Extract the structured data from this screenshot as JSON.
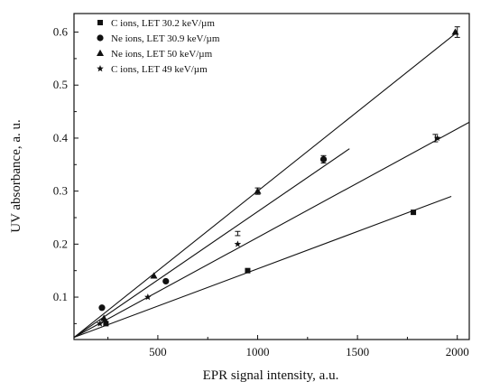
{
  "chart_data": {
    "type": "scatter",
    "xlabel": "EPR signal intensity, a.u.",
    "ylabel": "UV absorbance, a. u.",
    "xlim": [
      80,
      2060
    ],
    "ylim": [
      0.02,
      0.635
    ],
    "x_ticks": [
      500,
      1000,
      1500,
      2000
    ],
    "x_tick_labels": [
      "500",
      "1000",
      "1500",
      "2000"
    ],
    "y_ticks": [
      0.1,
      0.2,
      0.3,
      0.4,
      0.5,
      0.6
    ],
    "y_tick_labels": [
      "0.1",
      "0.2",
      "0.3",
      "0.4",
      "0.5",
      "0.6"
    ],
    "grid": false,
    "legend_position": "top-left",
    "series": [
      {
        "name": "C ions, LET 30.2 keV/µm",
        "marker": "square",
        "x": [
          240,
          950,
          1780
        ],
        "y": [
          0.05,
          0.15,
          0.26
        ],
        "fit": {
          "x": [
            80,
            1970
          ],
          "y": [
            0.024,
            0.29
          ]
        }
      },
      {
        "name": "Ne ions, LET 30.9 keV/µm",
        "marker": "circle",
        "x": [
          220,
          540,
          1330
        ],
        "y": [
          0.08,
          0.13,
          0.36
        ],
        "fit": {
          "x": [
            80,
            1460
          ],
          "y": [
            0.024,
            0.38
          ]
        }
      },
      {
        "name": "Ne ions, LET 50 keV/µm",
        "marker": "triangle",
        "x": [
          230,
          480,
          1000,
          1990
        ],
        "y": [
          0.06,
          0.14,
          0.3,
          0.6
        ],
        "fit": {
          "x": [
            80,
            2000
          ],
          "y": [
            0.024,
            0.6
          ]
        }
      },
      {
        "name": "C ions, LET 49 keV/µm",
        "marker": "star",
        "x": [
          210,
          450,
          900,
          1900
        ],
        "y": [
          0.05,
          0.1,
          0.2,
          0.4
        ],
        "fit": {
          "x": [
            80,
            2060
          ],
          "y": [
            0.024,
            0.43
          ]
        }
      }
    ],
    "error_bars": [
      {
        "x": 2000,
        "y": 0.6,
        "err": 0.01
      },
      {
        "x": 1890,
        "y": 0.4,
        "err": 0.007
      },
      {
        "x": 1330,
        "y": 0.36,
        "err": 0.007
      },
      {
        "x": 1000,
        "y": 0.3,
        "err": 0.006
      },
      {
        "x": 900,
        "y": 0.22,
        "err": 0.004
      }
    ],
    "colors": {
      "marks": "#111111",
      "axes": "#111111",
      "background": "#ffffff"
    }
  }
}
